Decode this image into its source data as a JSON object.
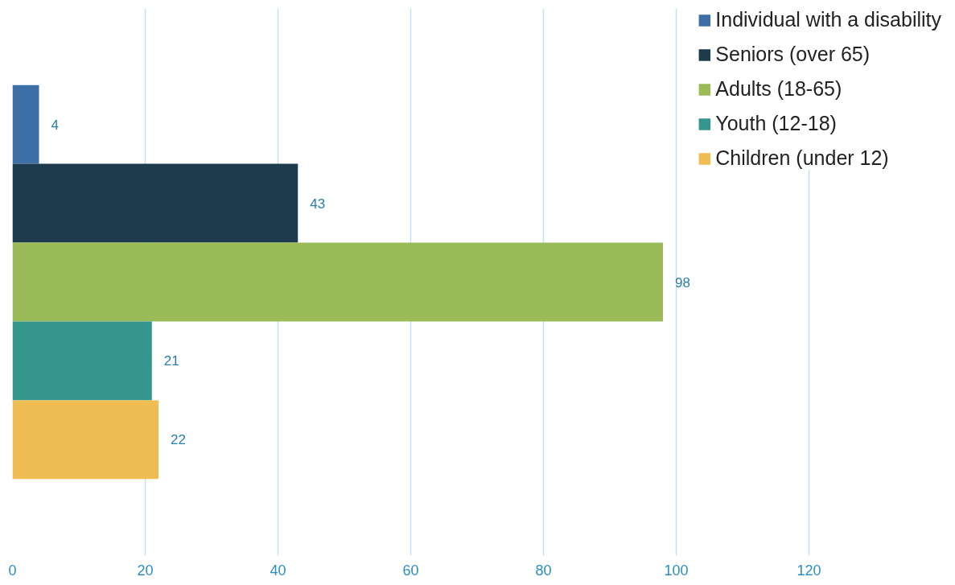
{
  "chart_data": {
    "type": "bar",
    "orientation": "horizontal",
    "categories": [
      null
    ],
    "series": [
      {
        "name": "Individual with a disability",
        "color": "#3d6fa6",
        "values": [
          4
        ]
      },
      {
        "name": "Seniors (over 65)",
        "color": "#1d3b4d",
        "values": [
          43
        ]
      },
      {
        "name": "Adults (18-65)",
        "color": "#9bbb59",
        "values": [
          98
        ]
      },
      {
        "name": "Youth (12-18)",
        "color": "#35968f",
        "values": [
          21
        ]
      },
      {
        "name": "Children (under 12)",
        "color": "#f0bd52",
        "values": [
          22
        ]
      }
    ],
    "xlim": [
      0,
      140
    ],
    "xticks": [
      0,
      20,
      40,
      60,
      80,
      100,
      120
    ],
    "grid": "x",
    "legend": "top right",
    "data_labels": true,
    "tick_labels": "x"
  }
}
